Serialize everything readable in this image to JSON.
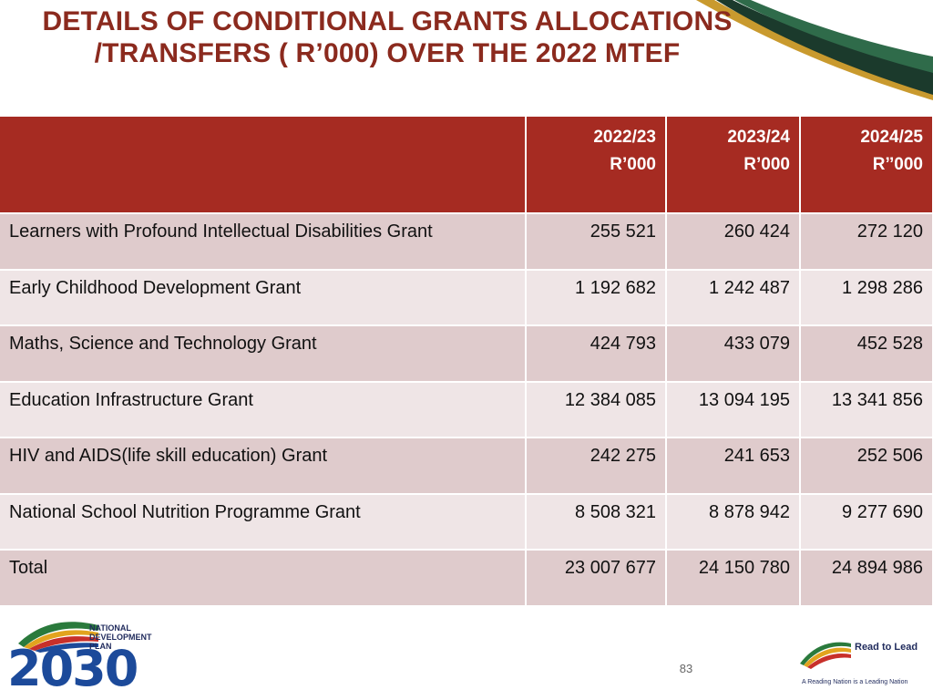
{
  "title": "DETAILS OF CONDITIONAL GRANTS ALLOCATIONS /TRANSFERS ( R’000) OVER THE 2022 MTEF",
  "table": {
    "columns": [
      {
        "year": "2022/23",
        "unit": "R’000"
      },
      {
        "year": "2023/24",
        "unit": "R’000"
      },
      {
        "year": "2024/25",
        "unit": "R’’000"
      }
    ],
    "rows": [
      {
        "label": "Learners with Profound Intellectual Disabilities Grant",
        "values": [
          "255 521",
          "260 424",
          "272 120"
        ]
      },
      {
        "label": "Early Childhood Development Grant",
        "values": [
          "1 192 682",
          "1 242 487",
          "1 298 286"
        ]
      },
      {
        "label": "Maths, Science and Technology Grant",
        "values": [
          "424 793",
          "433 079",
          "452 528"
        ]
      },
      {
        "label": "Education Infrastructure Grant",
        "values": [
          "12 384 085",
          "13 094 195",
          "13 341 856"
        ]
      },
      {
        "label": "HIV and AIDS(life skill education) Grant",
        "values": [
          "242 275",
          "241 653",
          "252 506"
        ]
      },
      {
        "label": "National School Nutrition Programme Grant",
        "values": [
          "8 508 321",
          "8 878 942",
          "9 277 690"
        ]
      },
      {
        "label": "Total",
        "values": [
          "23 007 677",
          "24 150 780",
          "24 894 986"
        ]
      }
    ]
  },
  "footer": {
    "page_number": "83",
    "ndp_logo": {
      "line1": "NATIONAL",
      "line2": "DEVELOPMENT",
      "line3": "PLAN",
      "year": "2030"
    },
    "rtl_logo": {
      "heading": "Read to Lead",
      "tagline": "A Reading Nation is a Leading Nation"
    }
  },
  "colors": {
    "title": "#8b2a1e",
    "header_bg": "#a62b22",
    "row_odd": "#dfcbcc",
    "row_even": "#efe5e6"
  }
}
